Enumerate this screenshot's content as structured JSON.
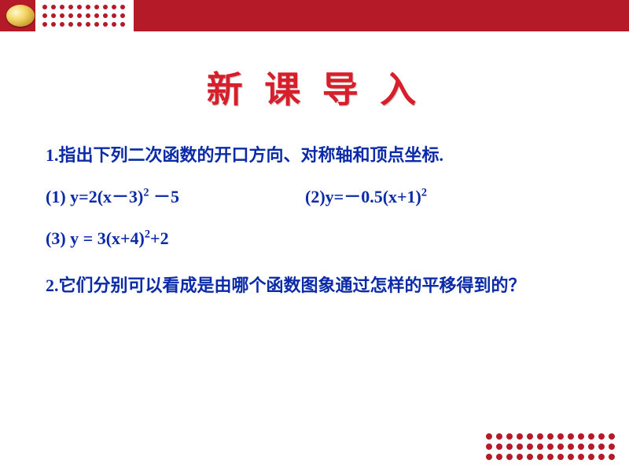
{
  "colors": {
    "header_red": "#b41a28",
    "title_red": "#d81e2a",
    "body_blue": "#0a2aa8",
    "background": "#ffffff"
  },
  "typography": {
    "title_fontsize": 46,
    "body_fontsize": 22,
    "title_font": "KaiTi",
    "body_font": "SimSun"
  },
  "title": "新 课 导 入",
  "q1": {
    "prompt": "1.指出下列二次函数的开口方向、对称轴和顶点坐标.",
    "eq1_label": "(1) ",
    "eq1_expr": "y=2(x－3)² －5",
    "eq2_label": "(2)",
    "eq2_expr": "y=－0.5(x+1)²",
    "eq3_label": "(3) ",
    "eq3_expr": "y = 3(x+4)²+2"
  },
  "q2": "2.它们分别可以看成是由哪个函数图象通过怎样的平移得到的？",
  "decor": {
    "top_dot_rows": 3,
    "top_dot_cols": 10,
    "bottom_dot_rows": 3,
    "bottom_dot_cols": 13,
    "dot_color": "#b41a28"
  }
}
